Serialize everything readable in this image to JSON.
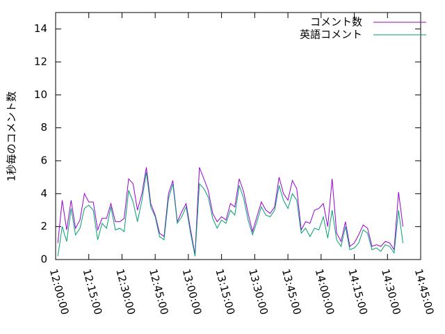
{
  "chart_data": {
    "type": "line",
    "ylabel": "1秒毎のコメント数",
    "x": [
      "12:01:00",
      "12:03:00",
      "12:05:00",
      "12:07:00",
      "12:09:00",
      "12:11:00",
      "12:13:00",
      "12:15:00",
      "12:17:00",
      "12:19:00",
      "12:21:00",
      "12:23:00",
      "12:25:00",
      "12:27:00",
      "12:29:00",
      "12:31:00",
      "12:33:00",
      "12:35:00",
      "12:37:00",
      "12:39:00",
      "12:41:00",
      "12:43:00",
      "12:45:00",
      "12:47:00",
      "12:49:00",
      "12:51:00",
      "12:53:00",
      "12:55:00",
      "12:57:00",
      "12:59:00",
      "13:01:00",
      "13:03:00",
      "13:05:00",
      "13:07:00",
      "13:09:00",
      "13:11:00",
      "13:13:00",
      "13:15:00",
      "13:17:00",
      "13:19:00",
      "13:21:00",
      "13:23:00",
      "13:25:00",
      "13:27:00",
      "13:29:00",
      "13:31:00",
      "13:33:00",
      "13:35:00",
      "13:37:00",
      "13:39:00",
      "13:41:00",
      "13:43:00",
      "13:45:00",
      "13:47:00",
      "13:49:00",
      "13:51:00",
      "13:53:00",
      "13:55:00",
      "13:57:00",
      "13:59:00",
      "14:01:00",
      "14:03:00",
      "14:05:00",
      "14:07:00",
      "14:09:00",
      "14:11:00",
      "14:13:00",
      "14:15:00",
      "14:17:00",
      "14:19:00",
      "14:21:00",
      "14:23:00",
      "14:25:00",
      "14:27:00",
      "14:29:00",
      "14:31:00",
      "14:33:00",
      "14:35:00",
      "14:37:00"
    ],
    "series": [
      {
        "name": "コメント数",
        "color": "#9400d3",
        "values": [
          1.0,
          3.6,
          1.8,
          3.6,
          1.9,
          2.4,
          4.0,
          3.5,
          3.5,
          1.8,
          2.5,
          2.5,
          3.4,
          2.3,
          2.3,
          2.5,
          4.9,
          4.6,
          3.0,
          4.0,
          5.6,
          3.4,
          2.7,
          1.6,
          1.4,
          4.0,
          4.8,
          2.3,
          2.9,
          3.4,
          1.8,
          0.3,
          5.6,
          4.9,
          4.2,
          2.8,
          2.3,
          2.6,
          2.4,
          3.4,
          3.2,
          4.9,
          4.1,
          2.8,
          1.7,
          2.6,
          3.5,
          3.0,
          2.8,
          3.2,
          5.0,
          4.0,
          3.6,
          4.8,
          4.3,
          1.8,
          2.3,
          2.2,
          3.0,
          3.1,
          3.4,
          2.0,
          4.9,
          1.6,
          1.1,
          2.3,
          0.8,
          1.0,
          1.5,
          2.1,
          1.9,
          0.8,
          0.9,
          0.8,
          1.1,
          1.0,
          0.6,
          4.1,
          2.0
        ]
      },
      {
        "name": "英語コメント",
        "color": "#009e73",
        "values": [
          0.2,
          2.0,
          1.1,
          3.1,
          1.5,
          1.9,
          3.1,
          3.3,
          3.0,
          1.2,
          2.2,
          1.9,
          3.2,
          1.8,
          1.9,
          1.7,
          4.2,
          3.5,
          2.3,
          3.6,
          5.3,
          3.2,
          2.6,
          1.4,
          1.2,
          3.7,
          4.6,
          2.2,
          2.6,
          3.2,
          1.6,
          0.2,
          4.6,
          4.3,
          3.8,
          2.5,
          1.9,
          2.4,
          2.2,
          3.0,
          2.7,
          4.5,
          3.7,
          2.4,
          1.5,
          2.3,
          3.2,
          2.7,
          2.6,
          3.0,
          4.5,
          3.6,
          3.1,
          4.0,
          3.6,
          1.6,
          1.9,
          1.4,
          1.9,
          1.8,
          2.6,
          1.3,
          3.0,
          1.2,
          0.8,
          2.0,
          0.6,
          0.7,
          1.0,
          1.8,
          1.6,
          0.6,
          0.7,
          0.5,
          0.9,
          0.8,
          0.4,
          3.0,
          1.0
        ]
      }
    ],
    "xlim": [
      "12:00:00",
      "14:45:00"
    ],
    "xticks": [
      "12:00:00",
      "12:15:00",
      "12:30:00",
      "12:45:00",
      "13:00:00",
      "13:15:00",
      "13:30:00",
      "13:45:00",
      "14:00:00",
      "14:15:00",
      "14:30:00",
      "14:45:00"
    ],
    "ylim": [
      0,
      15
    ],
    "yticks": [
      0,
      2,
      4,
      6,
      8,
      10,
      12,
      14
    ],
    "legend": "top-right"
  }
}
